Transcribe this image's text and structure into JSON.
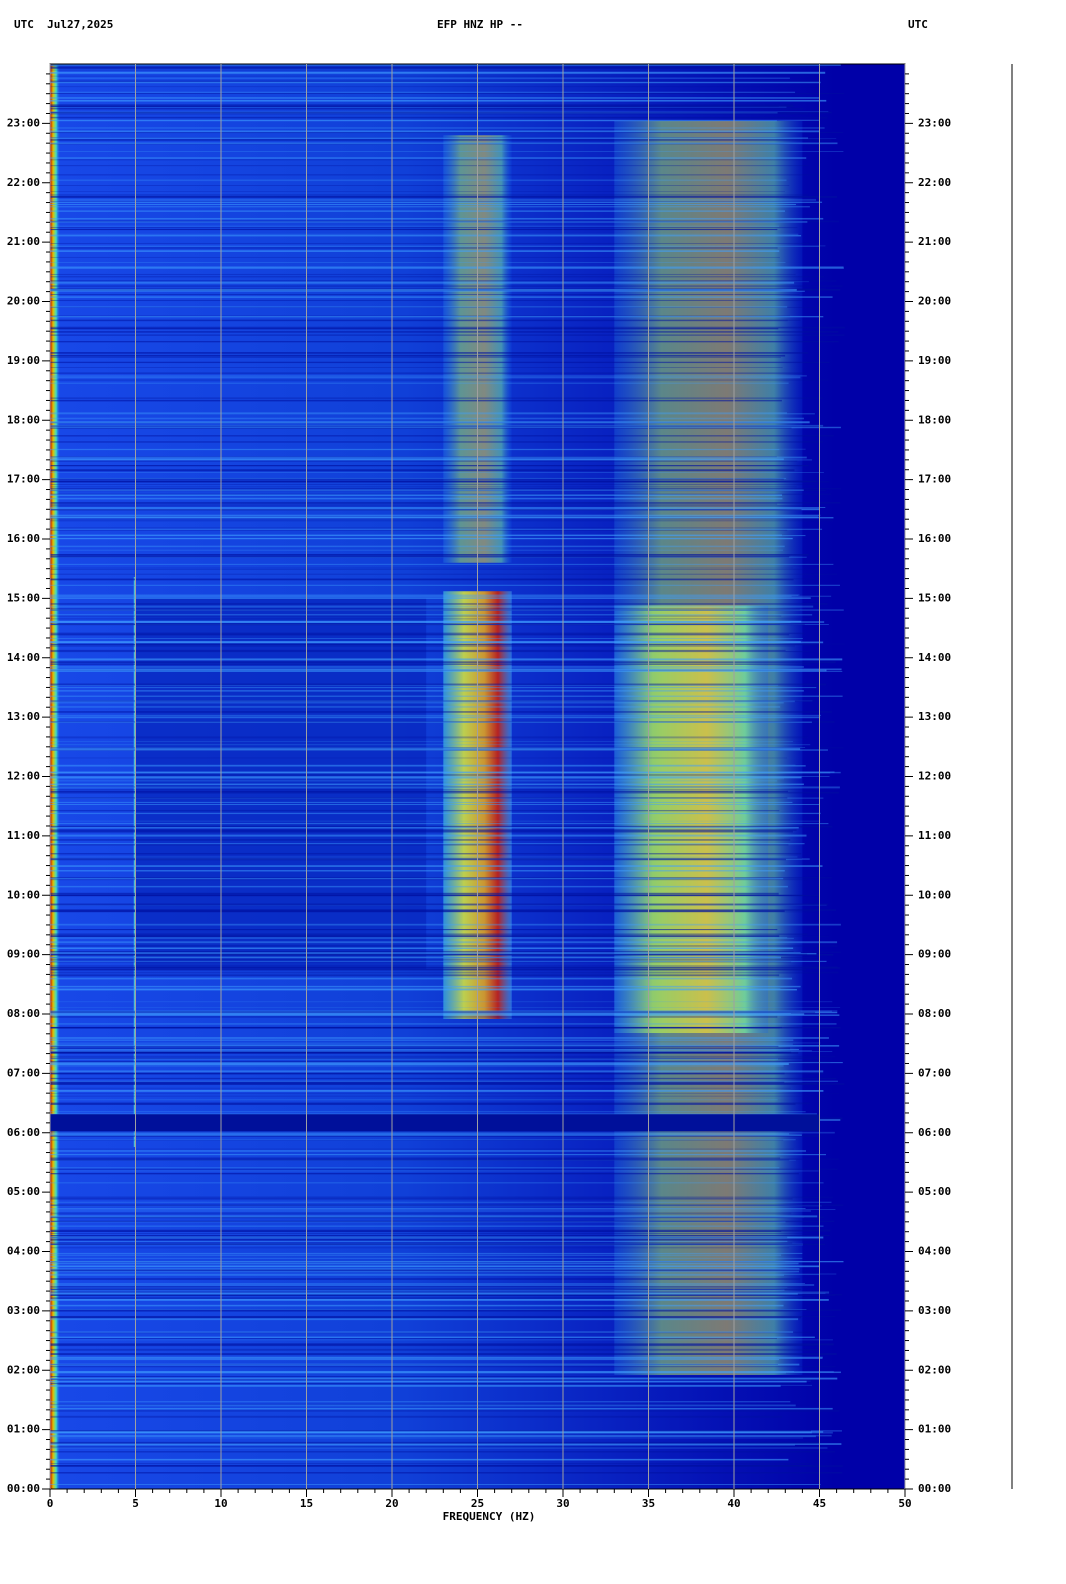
{
  "chart_data": {
    "type": "spectrogram",
    "title": "EFP HNZ HP --",
    "left_header": "UTC  Jul27,2025",
    "right_header": "UTC",
    "xlabel": "FREQUENCY (HZ)",
    "xlim": [
      0,
      50
    ],
    "xticks": [
      0,
      5,
      10,
      15,
      20,
      25,
      30,
      35,
      40,
      45,
      50
    ],
    "ylim": [
      0,
      24
    ],
    "yticks": [
      {
        "value": 0,
        "label": "00:00"
      },
      {
        "value": 1,
        "label": "01:00"
      },
      {
        "value": 2,
        "label": "02:00"
      },
      {
        "value": 3,
        "label": "03:00"
      },
      {
        "value": 4,
        "label": "04:00"
      },
      {
        "value": 5,
        "label": "05:00"
      },
      {
        "value": 6,
        "label": "06:00"
      },
      {
        "value": 7,
        "label": "07:00"
      },
      {
        "value": 8,
        "label": "08:00"
      },
      {
        "value": 9,
        "label": "09:00"
      },
      {
        "value": 10,
        "label": "10:00"
      },
      {
        "value": 11,
        "label": "11:00"
      },
      {
        "value": 12,
        "label": "12:00"
      },
      {
        "value": 13,
        "label": "13:00"
      },
      {
        "value": 14,
        "label": "14:00"
      },
      {
        "value": 15,
        "label": "15:00"
      },
      {
        "value": 16,
        "label": "16:00"
      },
      {
        "value": 17,
        "label": "17:00"
      },
      {
        "value": 18,
        "label": "18:00"
      },
      {
        "value": 19,
        "label": "19:00"
      },
      {
        "value": 20,
        "label": "20:00"
      },
      {
        "value": 21,
        "label": "21:00"
      },
      {
        "value": 22,
        "label": "22:00"
      },
      {
        "value": 23,
        "label": "23:00"
      }
    ],
    "grid": true
  }
}
